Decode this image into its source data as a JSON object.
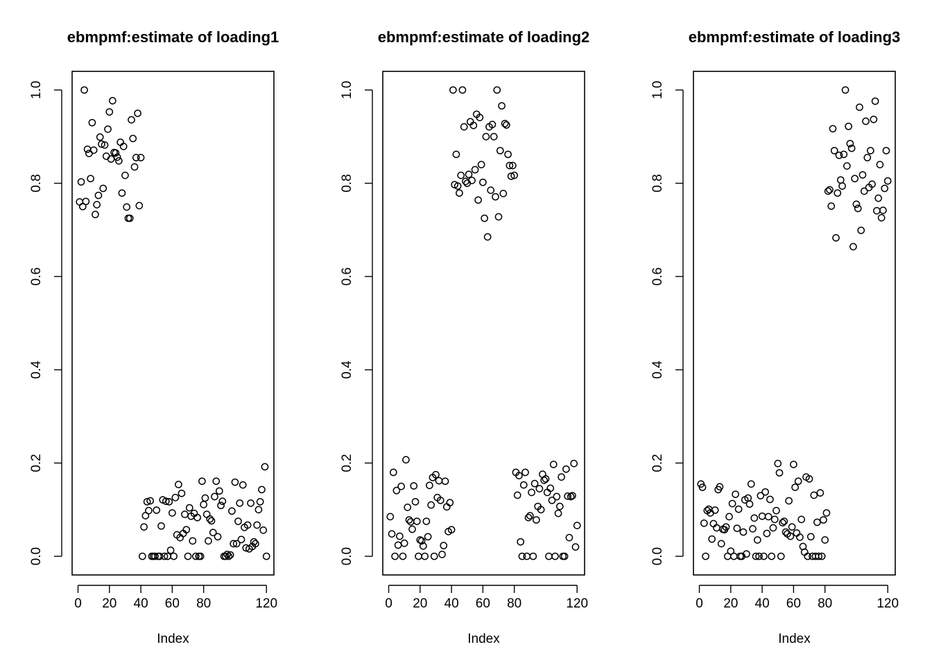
{
  "chart_data": [
    {
      "type": "scatter",
      "title": "ebmpmf:estimate of loading1",
      "xlabel": "Index",
      "ylabel": "",
      "xlim": [
        1,
        120
      ],
      "ylim": [
        0,
        1
      ],
      "xticks": [
        0,
        20,
        40,
        60,
        80,
        120
      ],
      "yticks": [
        0.0,
        0.2,
        0.4,
        0.6,
        0.8,
        1.0
      ],
      "xtick_labels": [
        "0",
        "20",
        "40",
        "60",
        "80",
        "120"
      ],
      "ytick_labels": [
        "0.0",
        "0.2",
        "0.4",
        "0.6",
        "0.8",
        "1.0"
      ],
      "grid": false,
      "x": [
        1,
        2,
        3,
        4,
        5,
        6,
        7,
        8,
        9,
        10,
        11,
        12,
        13,
        14,
        15,
        16,
        17,
        18,
        19,
        20,
        21,
        22,
        23,
        24,
        25,
        26,
        27,
        28,
        29,
        30,
        31,
        32,
        33,
        34,
        35,
        36,
        37,
        38,
        39,
        40,
        41,
        42,
        43,
        44,
        45,
        46,
        47,
        48,
        49,
        50,
        51,
        52,
        53,
        54,
        55,
        56,
        57,
        58,
        59,
        60,
        61,
        62,
        63,
        64,
        65,
        66,
        67,
        68,
        69,
        70,
        71,
        72,
        73,
        74,
        75,
        76,
        77,
        78,
        79,
        80,
        81,
        82,
        83,
        84,
        85,
        86,
        87,
        88,
        89,
        90,
        91,
        92,
        93,
        94,
        95,
        96,
        97,
        98,
        99,
        100,
        101,
        102,
        103,
        104,
        105,
        106,
        107,
        108,
        109,
        110,
        111,
        112,
        113,
        114,
        115,
        116,
        117,
        118,
        119,
        120
      ],
      "y": [
        0.76,
        0.803,
        0.75,
        1.0,
        0.761,
        0.873,
        0.864,
        0.81,
        0.93,
        0.871,
        0.733,
        0.754,
        0.774,
        0.899,
        0.884,
        0.789,
        0.882,
        0.858,
        0.916,
        0.953,
        0.852,
        0.977,
        0.866,
        0.865,
        0.856,
        0.848,
        0.888,
        0.779,
        0.879,
        0.817,
        0.749,
        0.725,
        0.725,
        0.936,
        0.896,
        0.835,
        0.855,
        0.95,
        0.752,
        0.855,
        0.0,
        0.063,
        0.087,
        0.117,
        0.098,
        0.119,
        0.0,
        0.0,
        0.0,
        0.099,
        0.0,
        0.0,
        0.065,
        0.121,
        0.0,
        0.118,
        0.0,
        0.117,
        0.013,
        0.093,
        0.0,
        0.126,
        0.046,
        0.154,
        0.04,
        0.135,
        0.049,
        0.09,
        0.057,
        0.0,
        0.104,
        0.086,
        0.033,
        0.092,
        0.0,
        0.083,
        0.0,
        0.0,
        0.161,
        0.111,
        0.125,
        0.09,
        0.033,
        0.08,
        0.076,
        0.051,
        0.128,
        0.161,
        0.042,
        0.14,
        0.109,
        0.118,
        0.0,
        0.0,
        0.004,
        0.0,
        0.003,
        0.097,
        0.027,
        0.159,
        0.027,
        0.075,
        0.114,
        0.036,
        0.153,
        0.062,
        0.018,
        0.067,
        0.016,
        0.114,
        0.021,
        0.031,
        0.027,
        0.067,
        0.1,
        0.117,
        0.143,
        0.056,
        0.192,
        0.0
      ]
    },
    {
      "type": "scatter",
      "title": "ebmpmf:estimate of loading2",
      "xlabel": "Index",
      "ylabel": "",
      "xlim": [
        1,
        120
      ],
      "ylim": [
        0,
        1
      ],
      "xticks": [
        0,
        20,
        40,
        60,
        80,
        120
      ],
      "yticks": [
        0.0,
        0.2,
        0.4,
        0.6,
        0.8,
        1.0
      ],
      "xtick_labels": [
        "0",
        "20",
        "40",
        "60",
        "80",
        "120"
      ],
      "ytick_labels": [
        "0.0",
        "0.2",
        "0.4",
        "0.6",
        "0.8",
        "1.0"
      ],
      "grid": false,
      "x": [
        1,
        2,
        3,
        4,
        5,
        6,
        7,
        8,
        9,
        10,
        11,
        12,
        13,
        14,
        15,
        16,
        17,
        18,
        19,
        20,
        21,
        22,
        23,
        24,
        25,
        26,
        27,
        28,
        29,
        30,
        31,
        32,
        33,
        34,
        35,
        36,
        37,
        38,
        39,
        40,
        41,
        42,
        43,
        44,
        45,
        46,
        47,
        48,
        49,
        50,
        51,
        52,
        53,
        54,
        55,
        56,
        57,
        58,
        59,
        60,
        61,
        62,
        63,
        64,
        65,
        66,
        67,
        68,
        69,
        70,
        71,
        72,
        73,
        74,
        75,
        76,
        77,
        78,
        79,
        80,
        81,
        82,
        83,
        84,
        85,
        86,
        87,
        88,
        89,
        90,
        91,
        92,
        93,
        94,
        95,
        96,
        97,
        98,
        99,
        100,
        101,
        102,
        103,
        104,
        105,
        106,
        107,
        108,
        109,
        110,
        111,
        112,
        113,
        114,
        115,
        116,
        117,
        118,
        119,
        120
      ],
      "y": [
        0.085,
        0.048,
        0.18,
        0.0,
        0.141,
        0.024,
        0.043,
        0.15,
        0.0,
        0.028,
        0.207,
        0.105,
        0.078,
        0.074,
        0.058,
        0.151,
        0.117,
        0.075,
        0.0,
        0.035,
        0.033,
        0.022,
        0.0,
        0.075,
        0.042,
        0.152,
        0.11,
        0.169,
        0.0,
        0.175,
        0.126,
        0.162,
        0.12,
        0.004,
        0.023,
        0.161,
        0.106,
        0.053,
        0.115,
        0.057,
        1.0,
        0.797,
        0.862,
        0.794,
        0.779,
        0.817,
        1.0,
        0.921,
        0.804,
        0.8,
        0.819,
        0.932,
        0.806,
        0.924,
        0.829,
        0.948,
        0.764,
        0.941,
        0.84,
        0.802,
        0.725,
        0.9,
        0.685,
        0.921,
        0.785,
        0.926,
        0.9,
        0.771,
        1.0,
        0.728,
        0.87,
        0.966,
        0.778,
        0.928,
        0.925,
        0.862,
        0.838,
        0.815,
        0.838,
        0.817,
        0.18,
        0.131,
        0.173,
        0.031,
        0.0,
        0.153,
        0.18,
        0.0,
        0.083,
        0.087,
        0.137,
        0.0,
        0.156,
        0.078,
        0.107,
        0.145,
        0.1,
        0.176,
        0.163,
        0.166,
        0.137,
        0.0,
        0.146,
        0.12,
        0.197,
        0.0,
        0.128,
        0.092,
        0.107,
        0.17,
        0.0,
        0.0,
        0.187,
        0.129,
        0.04,
        0.128,
        0.13,
        0.199,
        0.02,
        0.066
      ]
    },
    {
      "type": "scatter",
      "title": "ebmpmf:estimate of loading3",
      "xlabel": "Index",
      "ylabel": "",
      "xlim": [
        1,
        120
      ],
      "ylim": [
        0,
        1
      ],
      "xticks": [
        0,
        20,
        40,
        60,
        80,
        120
      ],
      "yticks": [
        0.0,
        0.2,
        0.4,
        0.6,
        0.8,
        1.0
      ],
      "xtick_labels": [
        "0",
        "20",
        "40",
        "60",
        "80",
        "120"
      ],
      "ytick_labels": [
        "0.0",
        "0.2",
        "0.4",
        "0.6",
        "0.8",
        "1.0"
      ],
      "grid": false,
      "x": [
        1,
        2,
        3,
        4,
        5,
        6,
        7,
        8,
        9,
        10,
        11,
        12,
        13,
        14,
        15,
        16,
        17,
        18,
        19,
        20,
        21,
        22,
        23,
        24,
        25,
        26,
        27,
        28,
        29,
        30,
        31,
        32,
        33,
        34,
        35,
        36,
        37,
        38,
        39,
        40,
        41,
        42,
        43,
        44,
        45,
        46,
        47,
        48,
        49,
        50,
        51,
        52,
        53,
        54,
        55,
        56,
        57,
        58,
        59,
        60,
        61,
        62,
        63,
        64,
        65,
        66,
        67,
        68,
        69,
        70,
        71,
        72,
        73,
        74,
        75,
        76,
        77,
        78,
        79,
        80,
        81,
        82,
        83,
        84,
        85,
        86,
        87,
        88,
        89,
        90,
        91,
        92,
        93,
        94,
        95,
        96,
        97,
        98,
        99,
        100,
        101,
        102,
        103,
        104,
        105,
        106,
        107,
        108,
        109,
        110,
        111,
        112,
        113,
        114,
        115,
        116,
        117,
        118,
        119,
        120
      ],
      "y": [
        0.155,
        0.148,
        0.071,
        0.0,
        0.098,
        0.101,
        0.093,
        0.037,
        0.07,
        0.099,
        0.061,
        0.143,
        0.149,
        0.027,
        0.058,
        0.057,
        0.063,
        0.0,
        0.085,
        0.011,
        0.113,
        0.0,
        0.133,
        0.06,
        0.101,
        0.0,
        0.0,
        0.052,
        0.121,
        0.005,
        0.125,
        0.112,
        0.155,
        0.059,
        0.082,
        0.0,
        0.035,
        0.0,
        0.13,
        0.086,
        0.0,
        0.138,
        0.049,
        0.085,
        0.122,
        0.0,
        0.061,
        0.079,
        0.098,
        0.199,
        0.179,
        0.0,
        0.072,
        0.075,
        0.052,
        0.048,
        0.119,
        0.043,
        0.063,
        0.197,
        0.148,
        0.05,
        0.161,
        0.041,
        0.079,
        0.021,
        0.009,
        0.17,
        0.0,
        0.166,
        0.042,
        0.0,
        0.131,
        0.0,
        0.073,
        0.0,
        0.136,
        0.0,
        0.078,
        0.035,
        0.093,
        0.783,
        0.786,
        0.751,
        0.917,
        0.87,
        0.683,
        0.779,
        0.86,
        0.807,
        0.794,
        0.862,
        1.0,
        0.837,
        0.922,
        0.885,
        0.875,
        0.664,
        0.81,
        0.755,
        0.746,
        0.963,
        0.699,
        0.818,
        0.783,
        0.933,
        0.855,
        0.791,
        0.87,
        0.798,
        0.937,
        0.976,
        0.741,
        0.768,
        0.84,
        0.726,
        0.742,
        0.789,
        0.87,
        0.805
      ]
    }
  ]
}
